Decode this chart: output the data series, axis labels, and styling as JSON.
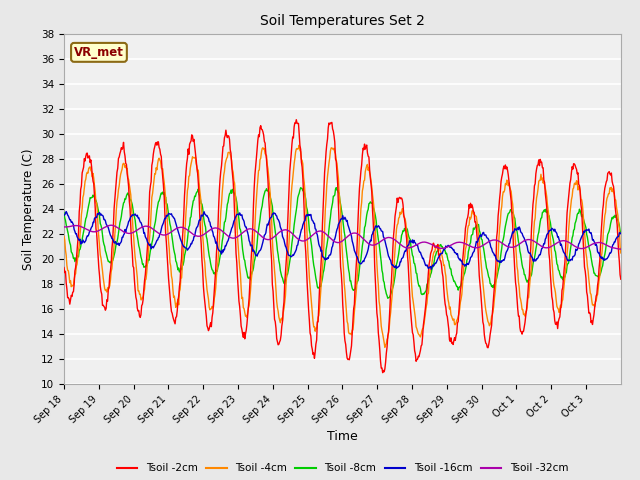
{
  "title": "Soil Temperatures Set 2",
  "xlabel": "Time",
  "ylabel": "Soil Temperature (C)",
  "ylim": [
    10,
    38
  ],
  "yticks": [
    10,
    12,
    14,
    16,
    18,
    20,
    22,
    24,
    26,
    28,
    30,
    32,
    34,
    36,
    38
  ],
  "colors": {
    "Tsoil -2cm": "#ff0000",
    "Tsoil -4cm": "#ff8800",
    "Tsoil -8cm": "#00cc00",
    "Tsoil -16cm": "#0000cc",
    "Tsoil -32cm": "#aa00aa"
  },
  "figure_bg": "#e8e8e8",
  "plot_bg": "#f0f0f0",
  "grid_color": "#ffffff",
  "annotation_text": "VR_met",
  "annotation_bg": "#ffffcc",
  "annotation_border": "#8b6914",
  "annotation_text_color": "#8b0000",
  "x_tick_labels": [
    "Sep 18",
    "Sep 19",
    "Sep 20",
    "Sep 21",
    "Sep 22",
    "Sep 23",
    "Sep 24",
    "Sep 25",
    "Sep 26",
    "Sep 27",
    "Sep 28",
    "Sep 29",
    "Sep 30",
    "Oct 1",
    "Oct 2",
    "Oct 3"
  ],
  "n_days": 16,
  "points_per_day": 48,
  "base_temp": 22.0
}
